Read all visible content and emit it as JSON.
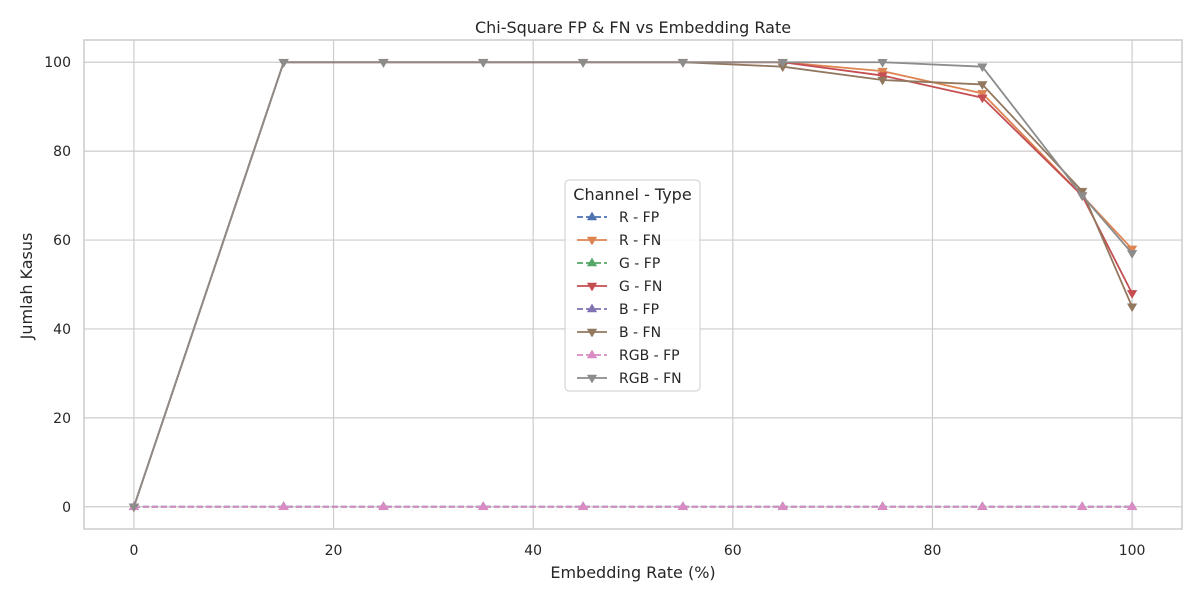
{
  "chart_data": {
    "type": "line",
    "title": "Chi-Square FP & FN vs Embedding Rate",
    "xlabel": "Embedding Rate (%)",
    "ylabel": "Jumlah Kasus",
    "xlim": [
      -5,
      105
    ],
    "ylim": [
      -5,
      105
    ],
    "xticks": [
      0,
      20,
      40,
      60,
      80,
      100
    ],
    "yticks": [
      0,
      20,
      40,
      60,
      80,
      100
    ],
    "grid": true,
    "legend": {
      "title": "Channel - Type",
      "placement": "center"
    },
    "x": [
      0,
      15,
      25,
      35,
      45,
      55,
      65,
      75,
      85,
      95,
      100
    ],
    "series": [
      {
        "name": "R - FP",
        "color": "#4c72b0",
        "dash": true,
        "marker": "triangle-up",
        "values": [
          0,
          0,
          0,
          0,
          0,
          0,
          0,
          0,
          0,
          0,
          0
        ]
      },
      {
        "name": "R - FN",
        "color": "#dd8452",
        "dash": false,
        "marker": "triangle-down",
        "values": [
          0,
          100,
          100,
          100,
          100,
          100,
          100,
          98,
          93,
          70,
          58
        ]
      },
      {
        "name": "G - FP",
        "color": "#55a868",
        "dash": true,
        "marker": "triangle-up",
        "values": [
          0,
          0,
          0,
          0,
          0,
          0,
          0,
          0,
          0,
          0,
          0
        ]
      },
      {
        "name": "G - FN",
        "color": "#c44e52",
        "dash": false,
        "marker": "triangle-down",
        "values": [
          0,
          100,
          100,
          100,
          100,
          100,
          100,
          97,
          92,
          70,
          48
        ]
      },
      {
        "name": "B - FP",
        "color": "#8172b3",
        "dash": true,
        "marker": "triangle-up",
        "values": [
          0,
          0,
          0,
          0,
          0,
          0,
          0,
          0,
          0,
          0,
          0
        ]
      },
      {
        "name": "B - FN",
        "color": "#937860",
        "dash": false,
        "marker": "triangle-down",
        "values": [
          0,
          100,
          100,
          100,
          100,
          100,
          99,
          96,
          95,
          71,
          45
        ]
      },
      {
        "name": "RGB - FP",
        "color": "#da8bc3",
        "dash": true,
        "marker": "triangle-up",
        "values": [
          0,
          0,
          0,
          0,
          0,
          0,
          0,
          0,
          0,
          0,
          0
        ]
      },
      {
        "name": "RGB - FN",
        "color": "#8c8c8c",
        "dash": false,
        "marker": "triangle-down",
        "values": [
          0,
          100,
          100,
          100,
          100,
          100,
          100,
          100,
          99,
          70,
          57
        ]
      }
    ]
  }
}
